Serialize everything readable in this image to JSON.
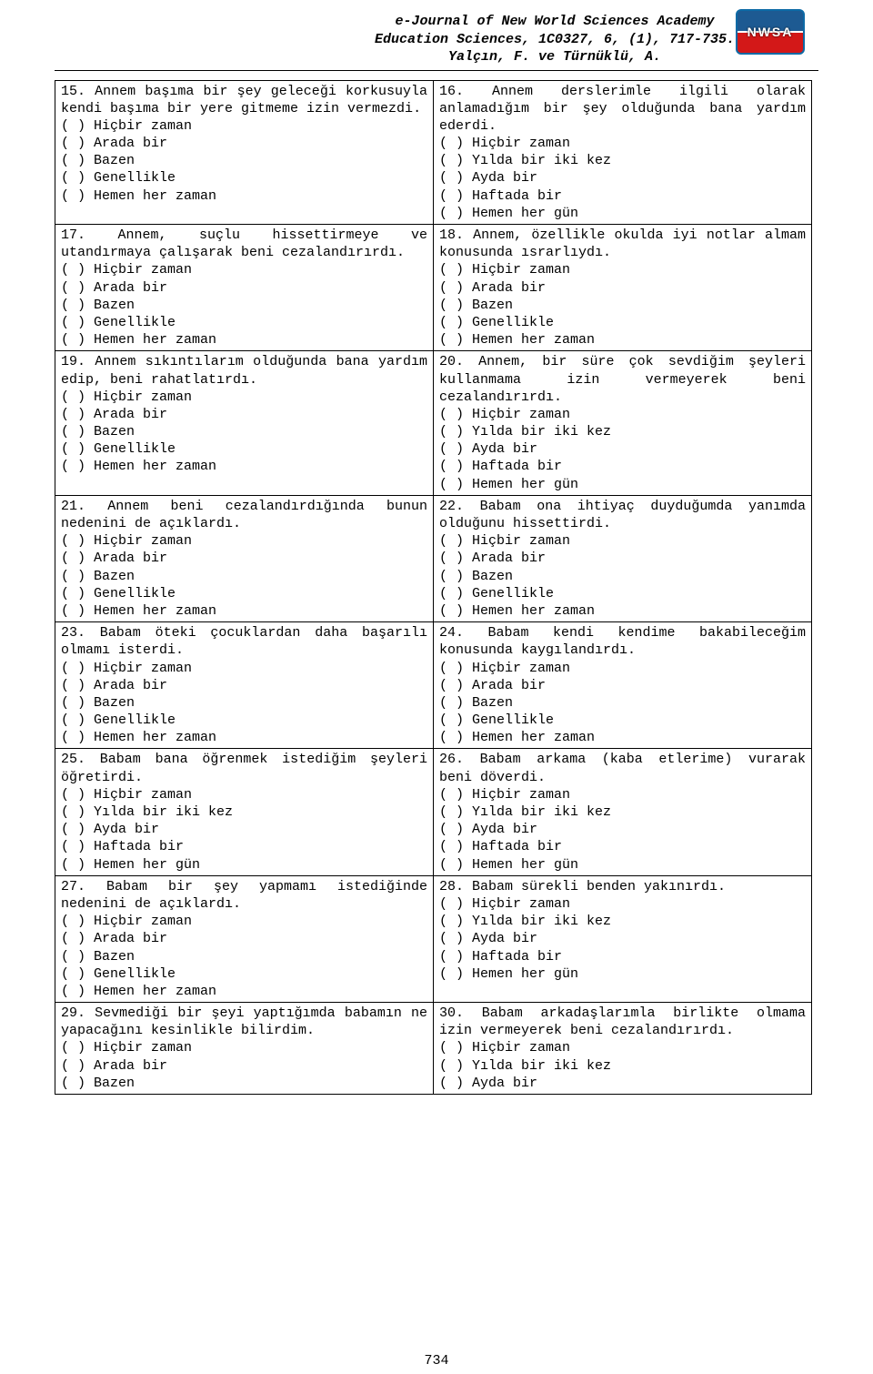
{
  "header": {
    "line1": "e-Journal of New World Sciences Academy",
    "line2": "Education Sciences, 1C0327, 6, (1), 717-735.",
    "line3": "Yalçın, F. ve Türnüklü, A.",
    "logo_text": "NWSA"
  },
  "page_number": "734",
  "option_sets": {
    "freq": [
      "( ) Hiçbir zaman",
      "( ) Arada bir",
      "( ) Bazen",
      "( ) Genellikle",
      "( ) Hemen her zaman"
    ],
    "period": [
      "( ) Hiçbir zaman",
      "( ) Yılda bir iki kez",
      "( ) Ayda bir",
      "( ) Haftada bir",
      "( ) Hemen her gün"
    ],
    "freq3": [
      "( ) Hiçbir zaman",
      "( ) Arada bir",
      "( ) Bazen"
    ],
    "period3": [
      "( ) Hiçbir zaman",
      "( ) Yılda bir iki kez",
      "( ) Ayda bir"
    ]
  },
  "rows": [
    {
      "left": {
        "text": "15. Annem başıma bir şey geleceği korkusuyla kendi başıma bir yere gitmeme izin vermezdi.",
        "opts": "freq"
      },
      "right": {
        "text": "16. Annem derslerimle ilgili olarak anlamadığım bir şey olduğunda bana yardım ederdi.",
        "opts": "period"
      }
    },
    {
      "left": {
        "text": "17. Annem, suçlu hissettirmeye ve utandırmaya çalışarak beni cezalandırırdı.",
        "opts": "freq"
      },
      "right": {
        "text": "18. Annem, özellikle okulda iyi notlar almam konusunda ısrarlıydı.",
        "opts": "freq"
      }
    },
    {
      "left": {
        "text": "19. Annem sıkıntılarım olduğunda bana yardım edip, beni rahatlatırdı.",
        "opts": "freq"
      },
      "right": {
        "text": "20. Annem, bir süre çok sevdiğim şeyleri kullanmama izin vermeyerek beni cezalandırırdı.",
        "opts": "period"
      }
    },
    {
      "left": {
        "text": "21. Annem beni cezalandırdığında bunun nedenini de açıklardı.",
        "opts": "freq"
      },
      "right": {
        "text": "22. Babam ona ihtiyaç duyduğumda yanımda olduğunu hissettirdi.",
        "opts": "freq"
      }
    },
    {
      "left": {
        "text": "23. Babam öteki çocuklardan daha başarılı olmamı isterdi.",
        "opts": "freq"
      },
      "right": {
        "text": "24. Babam kendi kendime bakabileceğim konusunda kaygılandırdı.",
        "opts": "freq"
      }
    },
    {
      "left": {
        "text": "25. Babam bana öğrenmek istediğim şeyleri öğretirdi.",
        "opts": "period"
      },
      "right": {
        "text": "26. Babam arkama (kaba etlerime) vurarak beni döverdi.",
        "opts": "period"
      }
    },
    {
      "left": {
        "text": "27. Babam bir şey yapmamı istediğinde nedenini de açıklardı.",
        "opts": "freq"
      },
      "right": {
        "text": "28. Babam sürekli benden yakınırdı.",
        "opts": "period"
      }
    },
    {
      "left": {
        "text": "29. Sevmediği bir şeyi yaptığımda babamın ne yapacağını kesinlikle bilirdim.",
        "opts": "freq3"
      },
      "right": {
        "text": "30. Babam arkadaşlarımla birlikte olmama izin vermeyerek beni cezalandırırdı.",
        "opts": "period3"
      }
    }
  ]
}
